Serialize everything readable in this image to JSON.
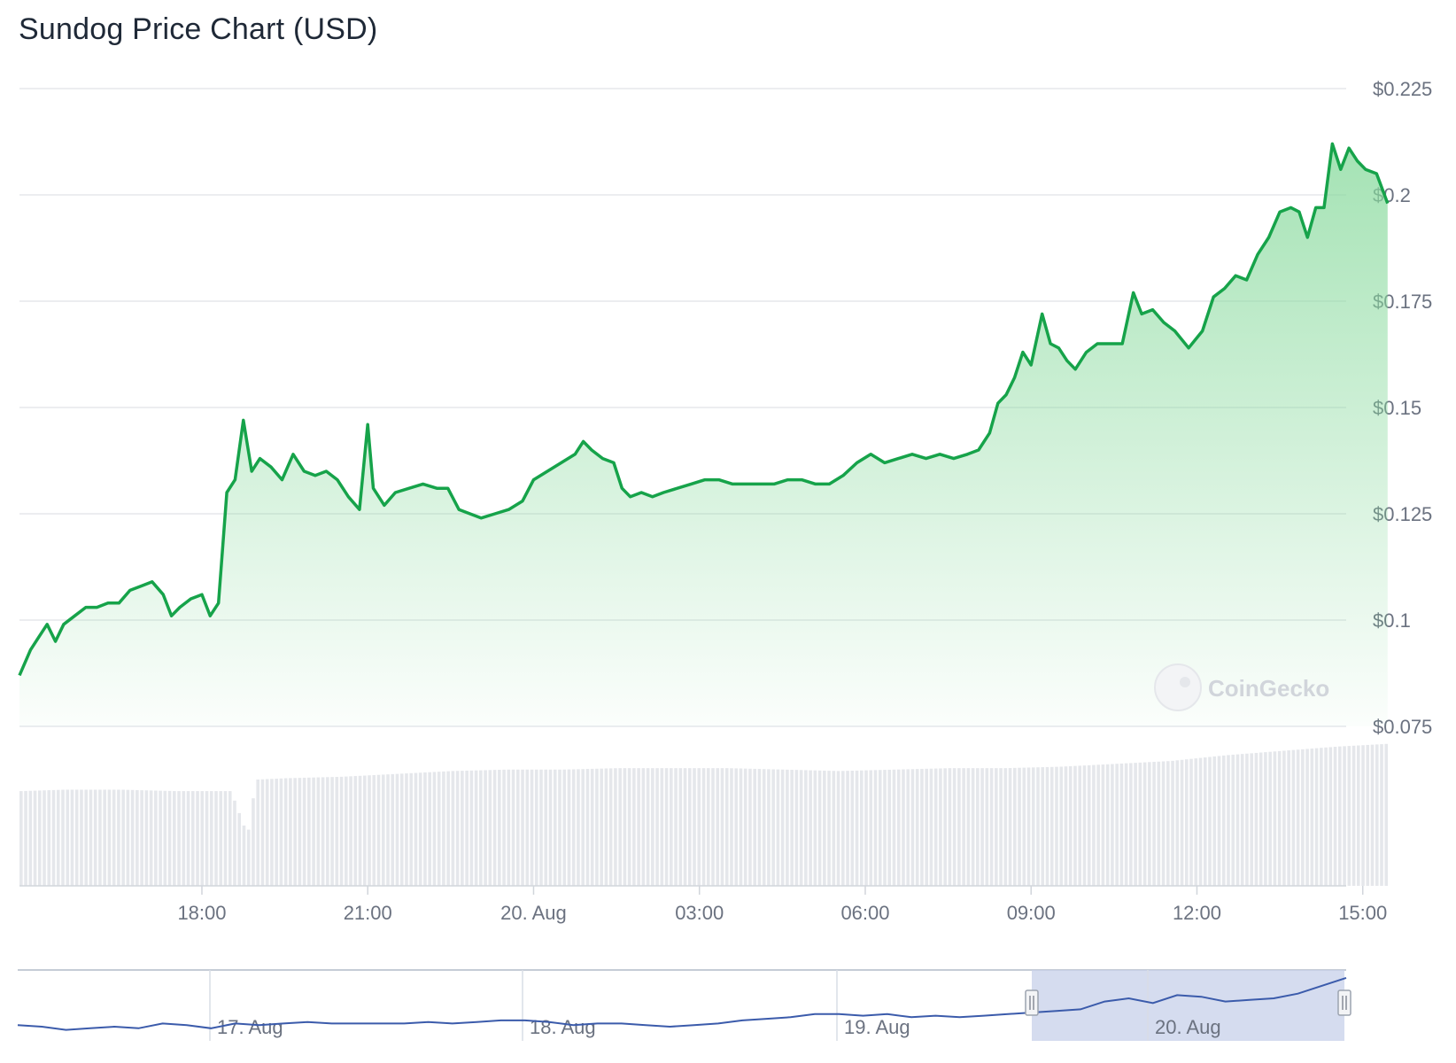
{
  "title": "Sundog Price Chart (USD)",
  "watermark": "CoinGecko",
  "colors": {
    "line": "#16a34a",
    "fill": "#86d99b",
    "grid": "#e5e7eb",
    "volume": "#e5e7eb",
    "navigator_line": "#3b5bab",
    "navigator_mask": "#c7d0ea"
  },
  "chart_data": {
    "type": "area",
    "ylim": [
      0.075,
      0.225
    ],
    "yticks": [
      "$0.225",
      "$0.2",
      "$0.175",
      "$0.15",
      "$0.125",
      "$0.1",
      "$0.075"
    ],
    "ytick_values": [
      0.225,
      0.2,
      0.175,
      0.15,
      0.125,
      0.1,
      0.075
    ],
    "xlim_hours": [
      -3.3,
      20.7
    ],
    "xticks": [
      "18:00",
      "21:00",
      "20. Aug",
      "03:00",
      "06:00",
      "09:00",
      "12:00",
      "15:00"
    ],
    "xtick_hours": [
      0,
      3,
      6,
      9,
      12,
      15,
      18,
      21
    ],
    "series": [
      {
        "values": [
          [
            -3.3,
            0.087
          ],
          [
            -3.1,
            0.093
          ],
          [
            -2.95,
            0.096
          ],
          [
            -2.8,
            0.099
          ],
          [
            -2.65,
            0.095
          ],
          [
            -2.5,
            0.099
          ],
          [
            -2.3,
            0.101
          ],
          [
            -2.1,
            0.103
          ],
          [
            -1.9,
            0.103
          ],
          [
            -1.7,
            0.104
          ],
          [
            -1.5,
            0.104
          ],
          [
            -1.3,
            0.107
          ],
          [
            -1.1,
            0.108
          ],
          [
            -0.9,
            0.109
          ],
          [
            -0.7,
            0.106
          ],
          [
            -0.55,
            0.101
          ],
          [
            -0.4,
            0.103
          ],
          [
            -0.2,
            0.105
          ],
          [
            0.0,
            0.106
          ],
          [
            0.15,
            0.101
          ],
          [
            0.3,
            0.104
          ],
          [
            0.45,
            0.13
          ],
          [
            0.6,
            0.133
          ],
          [
            0.75,
            0.147
          ],
          [
            0.9,
            0.135
          ],
          [
            1.05,
            0.138
          ],
          [
            1.25,
            0.136
          ],
          [
            1.45,
            0.133
          ],
          [
            1.65,
            0.139
          ],
          [
            1.85,
            0.135
          ],
          [
            2.05,
            0.134
          ],
          [
            2.25,
            0.135
          ],
          [
            2.45,
            0.133
          ],
          [
            2.65,
            0.129
          ],
          [
            2.85,
            0.126
          ],
          [
            3.0,
            0.146
          ],
          [
            3.1,
            0.131
          ],
          [
            3.3,
            0.127
          ],
          [
            3.5,
            0.13
          ],
          [
            3.75,
            0.131
          ],
          [
            4.0,
            0.132
          ],
          [
            4.25,
            0.131
          ],
          [
            4.45,
            0.131
          ],
          [
            4.65,
            0.126
          ],
          [
            4.85,
            0.125
          ],
          [
            5.05,
            0.124
          ],
          [
            5.3,
            0.125
          ],
          [
            5.55,
            0.126
          ],
          [
            5.8,
            0.128
          ],
          [
            6.0,
            0.133
          ],
          [
            6.25,
            0.135
          ],
          [
            6.5,
            0.137
          ],
          [
            6.75,
            0.139
          ],
          [
            6.9,
            0.142
          ],
          [
            7.05,
            0.14
          ],
          [
            7.25,
            0.138
          ],
          [
            7.45,
            0.137
          ],
          [
            7.6,
            0.131
          ],
          [
            7.75,
            0.129
          ],
          [
            7.95,
            0.13
          ],
          [
            8.15,
            0.129
          ],
          [
            8.35,
            0.13
          ],
          [
            8.6,
            0.131
          ],
          [
            8.85,
            0.132
          ],
          [
            9.1,
            0.133
          ],
          [
            9.35,
            0.133
          ],
          [
            9.6,
            0.132
          ],
          [
            9.85,
            0.132
          ],
          [
            10.1,
            0.132
          ],
          [
            10.35,
            0.132
          ],
          [
            10.6,
            0.133
          ],
          [
            10.85,
            0.133
          ],
          [
            11.1,
            0.132
          ],
          [
            11.35,
            0.132
          ],
          [
            11.6,
            0.134
          ],
          [
            11.85,
            0.137
          ],
          [
            12.1,
            0.139
          ],
          [
            12.35,
            0.137
          ],
          [
            12.6,
            0.138
          ],
          [
            12.85,
            0.139
          ],
          [
            13.1,
            0.138
          ],
          [
            13.35,
            0.139
          ],
          [
            13.6,
            0.138
          ],
          [
            13.85,
            0.139
          ],
          [
            14.05,
            0.14
          ],
          [
            14.25,
            0.144
          ],
          [
            14.4,
            0.151
          ],
          [
            14.55,
            0.153
          ],
          [
            14.7,
            0.157
          ],
          [
            14.85,
            0.163
          ],
          [
            15.0,
            0.16
          ],
          [
            15.2,
            0.172
          ],
          [
            15.35,
            0.165
          ],
          [
            15.5,
            0.164
          ],
          [
            15.65,
            0.161
          ],
          [
            15.8,
            0.159
          ],
          [
            16.0,
            0.163
          ],
          [
            16.2,
            0.165
          ],
          [
            16.45,
            0.165
          ],
          [
            16.65,
            0.165
          ],
          [
            16.85,
            0.177
          ],
          [
            17.0,
            0.172
          ],
          [
            17.2,
            0.173
          ],
          [
            17.4,
            0.17
          ],
          [
            17.6,
            0.168
          ],
          [
            17.85,
            0.164
          ],
          [
            18.1,
            0.168
          ],
          [
            18.3,
            0.176
          ],
          [
            18.5,
            0.178
          ],
          [
            18.7,
            0.181
          ],
          [
            18.9,
            0.18
          ],
          [
            19.1,
            0.186
          ],
          [
            19.3,
            0.19
          ],
          [
            19.5,
            0.196
          ],
          [
            19.7,
            0.197
          ],
          [
            19.85,
            0.196
          ],
          [
            20.0,
            0.19
          ],
          [
            20.15,
            0.197
          ],
          [
            20.3,
            0.197
          ],
          [
            20.45,
            0.212
          ],
          [
            20.6,
            0.206
          ],
          [
            20.75,
            0.211
          ],
          [
            20.9,
            0.208
          ],
          [
            21.05,
            0.206
          ],
          [
            21.25,
            0.205
          ],
          [
            21.45,
            0.198
          ]
        ]
      }
    ],
    "volume": {
      "ylim": [
        0,
        1
      ],
      "values": [
        [
          -3.3,
          0.66
        ],
        [
          -2.5,
          0.67
        ],
        [
          -1.5,
          0.67
        ],
        [
          -0.5,
          0.66
        ],
        [
          0.5,
          0.66
        ],
        [
          0.8,
          0.35
        ],
        [
          0.95,
          0.74
        ],
        [
          1.5,
          0.75
        ],
        [
          2.5,
          0.76
        ],
        [
          3.5,
          0.78
        ],
        [
          4.5,
          0.8
        ],
        [
          5.5,
          0.81
        ],
        [
          6.5,
          0.81
        ],
        [
          7.5,
          0.82
        ],
        [
          8.5,
          0.82
        ],
        [
          9.5,
          0.82
        ],
        [
          10.5,
          0.81
        ],
        [
          11.5,
          0.8
        ],
        [
          12.5,
          0.81
        ],
        [
          13.5,
          0.82
        ],
        [
          14.5,
          0.82
        ],
        [
          15.5,
          0.83
        ],
        [
          16.5,
          0.85
        ],
        [
          17.5,
          0.87
        ],
        [
          18.5,
          0.91
        ],
        [
          19.5,
          0.94
        ],
        [
          20.5,
          0.97
        ],
        [
          21.45,
          0.99
        ]
      ]
    },
    "navigator": {
      "xticks": [
        "17. Aug",
        "18. Aug",
        "19. Aug",
        "20. Aug"
      ],
      "values": [
        0.045,
        0.044,
        0.042,
        0.043,
        0.044,
        0.043,
        0.046,
        0.045,
        0.043,
        0.046,
        0.045,
        0.046,
        0.047,
        0.046,
        0.046,
        0.046,
        0.046,
        0.047,
        0.046,
        0.047,
        0.048,
        0.048,
        0.047,
        0.045,
        0.046,
        0.046,
        0.045,
        0.044,
        0.045,
        0.046,
        0.048,
        0.049,
        0.05,
        0.052,
        0.052,
        0.051,
        0.052,
        0.05,
        0.051,
        0.05,
        0.051,
        0.052,
        0.053,
        0.054,
        0.055,
        0.06,
        0.062,
        0.059,
        0.064,
        0.063,
        0.06,
        0.061,
        0.062,
        0.065,
        0.07,
        0.075
      ]
    }
  }
}
